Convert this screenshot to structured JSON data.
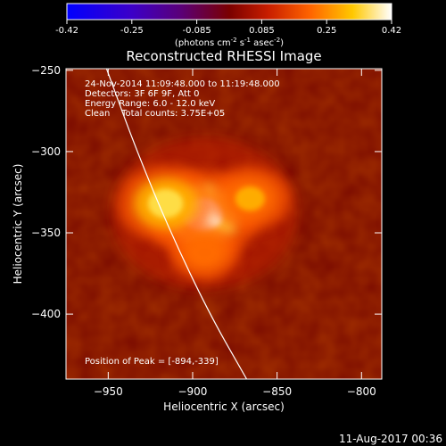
{
  "colorbar": {
    "ticks": [
      "-0.42",
      "-0.25",
      "-0.085",
      "0.085",
      "0.25",
      "0.42"
    ],
    "unit_label": "(photons cm",
    "unit_exp1": "-2",
    "unit_mid": " s",
    "unit_exp2": "-1",
    "unit_mid2": " asec",
    "unit_exp3": "-2",
    "unit_end": ")"
  },
  "chart_data": {
    "type": "heatmap",
    "title": "Reconstructed RHESSI Image",
    "xlabel": "Heliocentric X (arcsec)",
    "ylabel": "Heliocentric Y (arcsec)",
    "xlim": [
      -975,
      -788
    ],
    "ylim": [
      -440,
      -249
    ],
    "xticks": [
      -950,
      -900,
      -850,
      -800
    ],
    "xtick_labels": [
      "−950",
      "−900",
      "−850",
      "−800"
    ],
    "yticks": [
      -250,
      -300,
      -350,
      -400
    ],
    "ytick_labels": [
      "−250",
      "−300",
      "−350",
      "−400"
    ],
    "colorbar_range": [
      -0.42,
      0.42
    ],
    "colormap": "blue-purple-red-yellow-white",
    "annotations": [
      "24-Nov-2014 11:09:48.000 to 11:19:48.000",
      "Detectors: 3F 6F 9F, Att 0",
      "Energy Range: 6.0 - 12.0 keV",
      "Clean    Total counts: 3.75E+05"
    ],
    "peak_label": "Position of Peak = [-894,-339]",
    "peak": {
      "x": -894,
      "y": -339
    },
    "sources": [
      {
        "x": -894,
        "y": -339,
        "peak": 0.42
      },
      {
        "x": -916,
        "y": -332,
        "peak": 0.33
      },
      {
        "x": -866,
        "y": -329,
        "peak": 0.24
      },
      {
        "x": -893,
        "y": -362,
        "peak": 0.18
      }
    ],
    "background_level": 0.085,
    "limb_curve": [
      {
        "x": -951,
        "y": -249
      },
      {
        "x": -933,
        "y": -300
      },
      {
        "x": -913,
        "y": -350
      },
      {
        "x": -890,
        "y": -400
      },
      {
        "x": -868,
        "y": -440
      }
    ]
  },
  "footer": {
    "timestamp": "11-Aug-2017 00:36"
  },
  "colors": {
    "background": "#000000",
    "text": "#ffffff",
    "limb": "#ffffff"
  }
}
